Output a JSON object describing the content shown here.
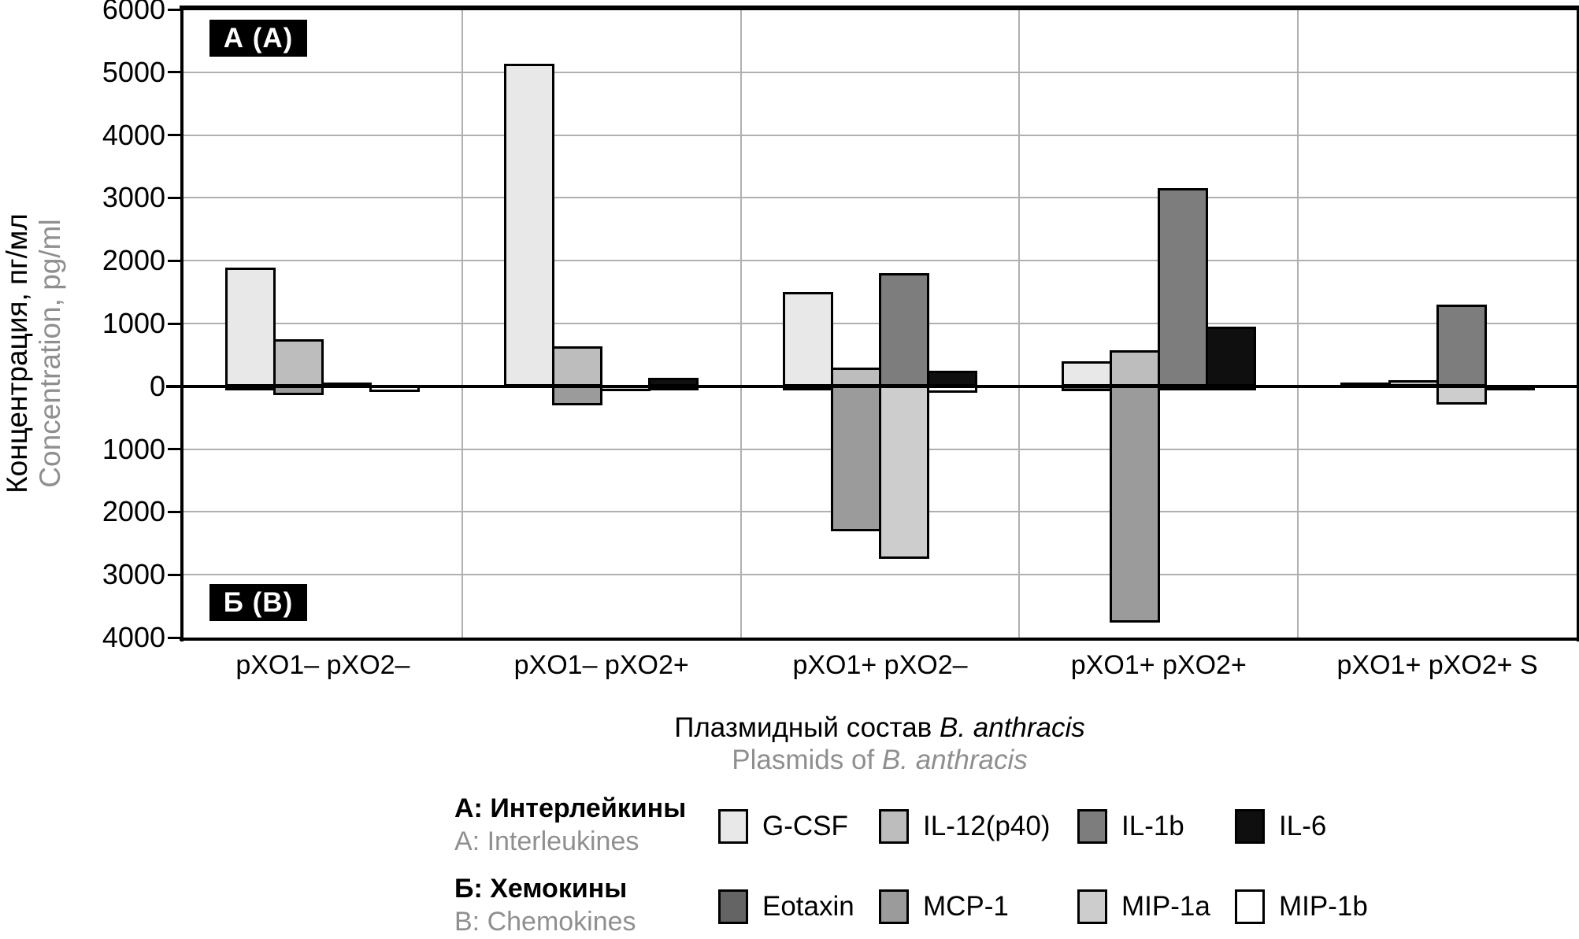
{
  "chart_data": {
    "type": "bar",
    "panel_top_label": "А (A)",
    "panel_bottom_label": "Б (B)",
    "categories": [
      "pXO1– pXO2–",
      "pXO1– pXO2+",
      "pXO1+ pXO2–",
      "pXO1+ pXO2+",
      "pXO1+ pXO2+ S"
    ],
    "series_up": [
      {
        "name": "G-CSF",
        "color": "#e8e8e8",
        "values": [
          1890,
          5130,
          1500,
          400,
          40
        ]
      },
      {
        "name": "IL-12(p40)",
        "color": "#bdbdbd",
        "values": [
          750,
          640,
          300,
          580,
          100
        ]
      },
      {
        "name": "IL-1b",
        "color": "#7d7d7d",
        "values": [
          40,
          0,
          1800,
          3160,
          1300
        ]
      },
      {
        "name": "IL-6",
        "color": "#0f0f0f",
        "values": [
          0,
          130,
          250,
          950,
          0
        ]
      }
    ],
    "series_down": [
      {
        "name": "Eotaxin",
        "color": "#646464",
        "values": [
          -30,
          0,
          -50,
          -90,
          0
        ]
      },
      {
        "name": "MCP-1",
        "color": "#9b9b9b",
        "values": [
          -150,
          -320,
          -2320,
          -3780,
          0
        ]
      },
      {
        "name": "MIP-1a",
        "color": "#cdcdcd",
        "values": [
          0,
          -90,
          -2760,
          -80,
          -300
        ]
      },
      {
        "name": "MIP-1b",
        "color": "#ffffff",
        "values": [
          -100,
          -50,
          -120,
          -70,
          -70
        ]
      }
    ],
    "ylim": [
      -4000,
      6000
    ],
    "ytick_step": 1000,
    "ytick_labels": [
      "6000",
      "5000",
      "4000",
      "3000",
      "2000",
      "1000",
      "0",
      "1000",
      "2000",
      "3000",
      "4000"
    ],
    "y_axis_title_ru": "Концентрация, пг/мл",
    "y_axis_title_en": "Concentration, pg/ml",
    "x_axis_title_ru_prefix": "Плазмидный состав ",
    "x_axis_title_en_prefix": "Plasmids of ",
    "x_axis_title_species": "B. anthracis",
    "grid": true,
    "legend_position": "bottom",
    "legend_rows": [
      {
        "title_ru": "А: Интерлейкины",
        "title_en": "A: Interleukines",
        "series": [
          "G-CSF",
          "IL-12(p40)",
          "IL-1b",
          "IL-6"
        ]
      },
      {
        "title_ru": "Б: Хемокины",
        "title_en": "B: Chemokines",
        "series": [
          "Eotaxin",
          "MCP-1",
          "MIP-1a",
          "MIP-1b"
        ]
      }
    ]
  },
  "colors": {
    "grid_line": "#b0b0b0",
    "axis": "#000000",
    "muted_text": "#8f8f8f",
    "bar_border": "#000000"
  }
}
